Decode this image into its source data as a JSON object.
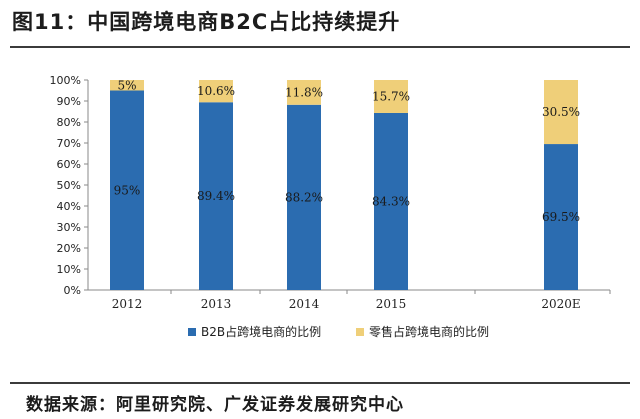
{
  "header": {
    "title": "图11：中国跨境电商B2C占比持续提升"
  },
  "footer": {
    "source": "数据来源：阿里研究院、广发证券发展研究中心"
  },
  "colors": {
    "b2b": "#2b6cb0",
    "retail": "#efcf79",
    "axis": "#8a8a8a"
  },
  "chart_data": {
    "type": "bar",
    "stacked": true,
    "categories": [
      "2012",
      "2013",
      "2014",
      "2015",
      "2020E"
    ],
    "series": [
      {
        "name": "B2B占跨境电商的比例",
        "values": [
          95,
          89.4,
          88.2,
          84.3,
          69.5
        ],
        "labels": [
          "95%",
          "89.4%",
          "88.2%",
          "84.3%",
          "69.5%"
        ]
      },
      {
        "name": "零售占跨境电商的比例",
        "values": [
          5,
          10.6,
          11.8,
          15.7,
          30.5
        ],
        "labels": [
          "5%",
          "10.6%",
          "11.8%",
          "15.7%",
          "30.5%"
        ]
      }
    ],
    "ylim": [
      0,
      100
    ],
    "yticks": [
      "0%",
      "10%",
      "20%",
      "30%",
      "40%",
      "50%",
      "60%",
      "70%",
      "80%",
      "90%",
      "100%"
    ],
    "grid": false,
    "legend": "bottom"
  }
}
